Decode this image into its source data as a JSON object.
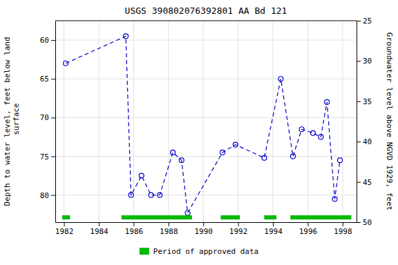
{
  "chart_data": {
    "type": "line",
    "title": "USGS 390802076392801 AA Bd 121",
    "y_label": "Depth to water level, feet below land\n surface",
    "y2_label": "Groundwater level above NGVD 1929, feet",
    "x": [
      1982.1,
      1985.55,
      1985.85,
      1986.45,
      1987.0,
      1987.5,
      1988.25,
      1988.75,
      1989.1,
      1991.1,
      1991.85,
      1993.5,
      1994.45,
      1995.15,
      1995.65,
      1996.3,
      1996.75,
      1997.1,
      1997.55,
      1997.85
    ],
    "series": [
      {
        "type": "line",
        "color": "#0000cc",
        "marker": "circle",
        "line_style": "dashed",
        "values": [
          63.0,
          59.5,
          80.0,
          77.5,
          80.0,
          80.0,
          74.5,
          75.5,
          82.3,
          74.5,
          73.5,
          75.2,
          65.0,
          75.0,
          71.5,
          72.0,
          72.5,
          68.0,
          80.5,
          75.5
        ]
      },
      {
        "type": "span",
        "name": "Period of approved data",
        "color": "#00bb00",
        "ranges": [
          [
            1981.9,
            1982.35
          ],
          [
            1985.3,
            1989.35
          ],
          [
            1991.0,
            1992.1
          ],
          [
            1993.5,
            1994.2
          ],
          [
            1995.0,
            1998.5
          ]
        ]
      }
    ],
    "xlim": [
      1981.5,
      1998.8
    ],
    "xticks": [
      1982,
      1984,
      1986,
      1988,
      1990,
      1992,
      1994,
      1996,
      1998
    ],
    "ylim": [
      83.5,
      57.5
    ],
    "yticks": [
      60,
      65,
      70,
      75,
      80
    ],
    "y2lim": [
      50,
      25
    ],
    "y2ticks": [
      25,
      30,
      35,
      40,
      45,
      50
    ],
    "grid": true,
    "legend": "bottom"
  }
}
